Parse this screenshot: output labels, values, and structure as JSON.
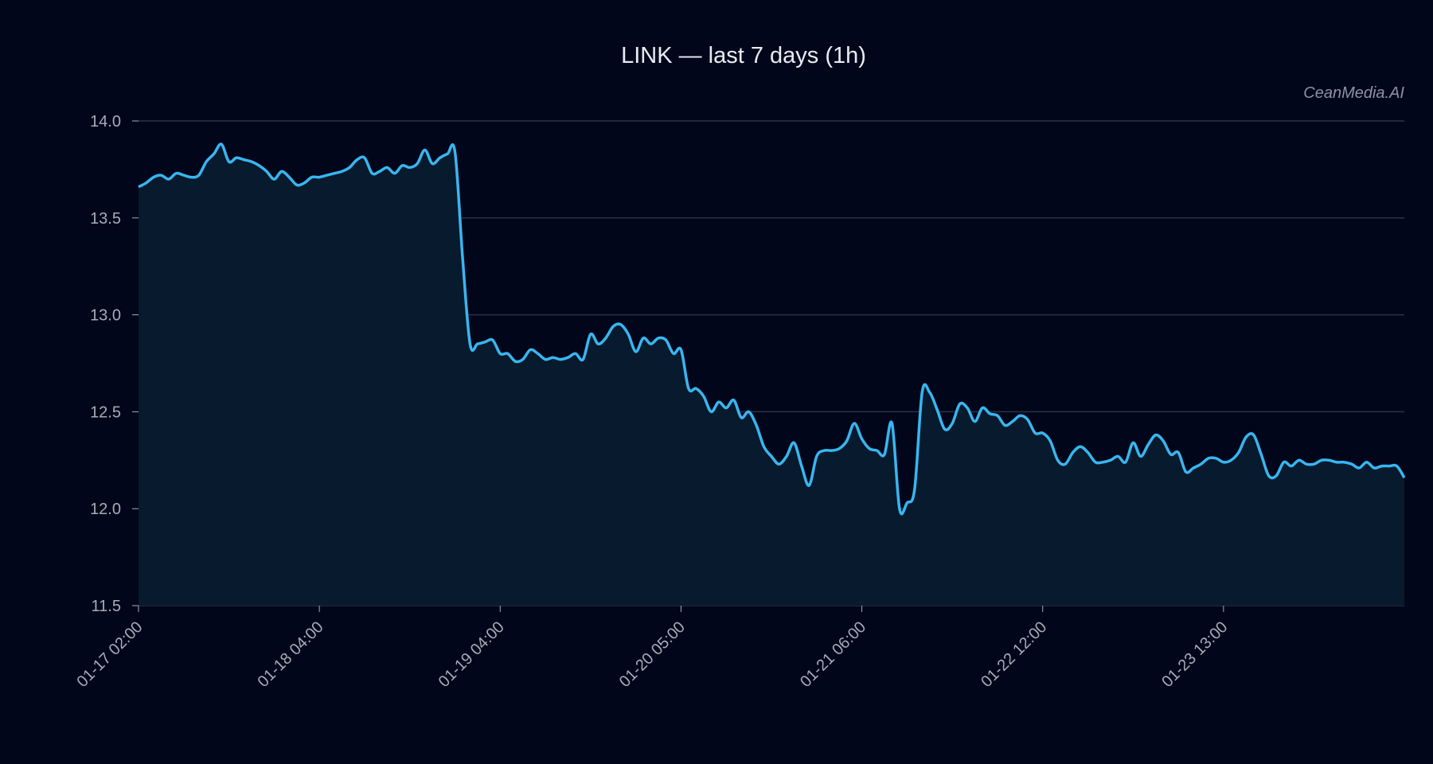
{
  "title": "LINK — last 7 days (1h)",
  "watermark": "CeanMedia.AI",
  "colors": {
    "background": "#02061a",
    "line": "#38b6f0",
    "fill": "#071a2e",
    "grid": "#2a3344",
    "text": "#a6acb8"
  },
  "chart_data": {
    "type": "area",
    "title": "LINK — last 7 days (1h)",
    "xlabel": "",
    "ylabel": "",
    "ylim": [
      11.5,
      14.0
    ],
    "yticks": [
      11.5,
      12.0,
      12.5,
      13.0,
      13.5,
      14.0
    ],
    "ytick_labels": [
      "11.5",
      "12.0",
      "12.5",
      "13.0",
      "13.5",
      "14.0"
    ],
    "xtick_labels": [
      "01-17 02:00",
      "01-18 04:00",
      "01-19 04:00",
      "01-20 05:00",
      "01-21 06:00",
      "01-22 12:00",
      "01-23 13:00"
    ],
    "xtick_indices": [
      0,
      24,
      48,
      72,
      96,
      120,
      144
    ],
    "grid": "horizontal",
    "legend": "none",
    "series": [
      {
        "name": "LINK",
        "values": [
          13.66,
          13.68,
          13.71,
          13.72,
          13.7,
          13.73,
          13.72,
          13.71,
          13.72,
          13.79,
          13.83,
          13.88,
          13.79,
          13.81,
          13.8,
          13.79,
          13.77,
          13.74,
          13.7,
          13.74,
          13.71,
          13.67,
          13.68,
          13.71,
          13.71,
          13.72,
          13.73,
          13.74,
          13.76,
          13.8,
          13.81,
          13.73,
          13.74,
          13.76,
          13.73,
          13.77,
          13.76,
          13.78,
          13.85,
          13.78,
          13.81,
          13.83,
          13.84,
          13.3,
          12.85,
          12.85,
          12.86,
          12.87,
          12.8,
          12.8,
          12.76,
          12.77,
          12.82,
          12.8,
          12.77,
          12.78,
          12.77,
          12.78,
          12.8,
          12.77,
          12.9,
          12.85,
          12.88,
          12.94,
          12.95,
          12.9,
          12.81,
          12.88,
          12.85,
          12.88,
          12.87,
          12.8,
          12.82,
          12.62,
          12.62,
          12.58,
          12.5,
          12.55,
          12.52,
          12.56,
          12.47,
          12.5,
          12.43,
          12.32,
          12.27,
          12.23,
          12.27,
          12.34,
          12.22,
          12.12,
          12.27,
          12.3,
          12.3,
          12.31,
          12.35,
          12.44,
          12.36,
          12.31,
          12.3,
          12.28,
          12.44,
          12.0,
          12.03,
          12.1,
          12.6,
          12.6,
          12.51,
          12.41,
          12.44,
          12.54,
          12.52,
          12.45,
          12.52,
          12.49,
          12.48,
          12.43,
          12.45,
          12.48,
          12.46,
          12.39,
          12.39,
          12.35,
          12.25,
          12.23,
          12.29,
          12.32,
          12.29,
          12.24,
          12.24,
          12.25,
          12.27,
          12.24,
          12.34,
          12.27,
          12.33,
          12.38,
          12.35,
          12.28,
          12.29,
          12.19,
          12.21,
          12.23,
          12.26,
          12.26,
          12.24,
          12.25,
          12.29,
          12.37,
          12.38,
          12.28,
          12.17,
          12.17,
          12.24,
          12.22,
          12.25,
          12.23,
          12.23,
          12.25,
          12.25,
          12.24,
          12.24,
          12.23,
          12.21,
          12.24,
          12.21,
          12.22,
          12.22,
          12.22,
          12.16
        ]
      }
    ]
  }
}
